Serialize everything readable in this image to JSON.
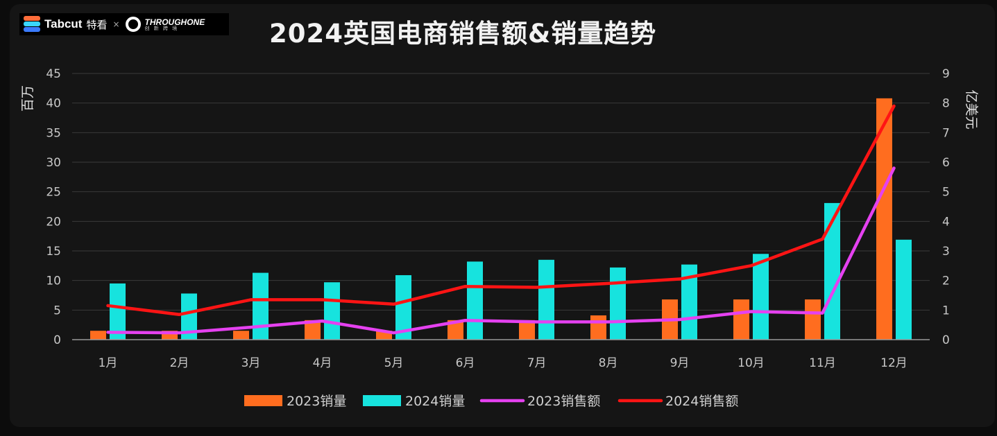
{
  "logo": {
    "brand": "Tabcut",
    "brand_cn": "特看",
    "separator": "×",
    "partner": "THROUGHONE",
    "partner_cn": "创 新 跨 境"
  },
  "title": "2024英国电商销售额&销量趋势",
  "colors": {
    "sales_2023": "#ff6d1f",
    "sales_2024": "#17e3de",
    "revenue_2023": "#e541f0",
    "revenue_2024": "#ff1414",
    "grid": "#3a3a3a",
    "background": "#151515"
  },
  "chart_data": {
    "type": "bar",
    "categories": [
      "1月",
      "2月",
      "3月",
      "4月",
      "5月",
      "6月",
      "7月",
      "8月",
      "9月",
      "10月",
      "11月",
      "12月"
    ],
    "left_axis": {
      "label": "百万",
      "ylim": [
        0,
        45
      ],
      "ticks": [
        0,
        5,
        10,
        15,
        20,
        25,
        30,
        35,
        40,
        45
      ]
    },
    "right_axis": {
      "label": "亿美元",
      "ylim": [
        0,
        9
      ],
      "ticks": [
        0,
        1,
        2,
        3,
        4,
        5,
        6,
        7,
        8,
        9
      ]
    },
    "grid": true,
    "legend_position": "bottom",
    "series": [
      {
        "name": "2023销量",
        "type": "bar",
        "axis": "left",
        "values": [
          1.5,
          1.5,
          1.5,
          3.3,
          1.5,
          3.3,
          3.3,
          4.1,
          6.8,
          6.8,
          6.8,
          40.8
        ]
      },
      {
        "name": "2024销量",
        "type": "bar",
        "axis": "left",
        "values": [
          9.5,
          7.8,
          11.3,
          9.7,
          10.9,
          13.2,
          13.5,
          12.2,
          12.7,
          14.5,
          23.1,
          16.9
        ]
      },
      {
        "name": "2023销售额",
        "type": "line",
        "axis": "right",
        "values": [
          0.25,
          0.23,
          0.42,
          0.63,
          0.23,
          0.65,
          0.6,
          0.6,
          0.68,
          0.95,
          0.9,
          5.8
        ]
      },
      {
        "name": "2024销售额",
        "type": "line",
        "axis": "right",
        "values": [
          1.15,
          0.85,
          1.35,
          1.35,
          1.2,
          1.8,
          1.77,
          1.9,
          2.05,
          2.5,
          3.4,
          7.9
        ]
      }
    ]
  }
}
